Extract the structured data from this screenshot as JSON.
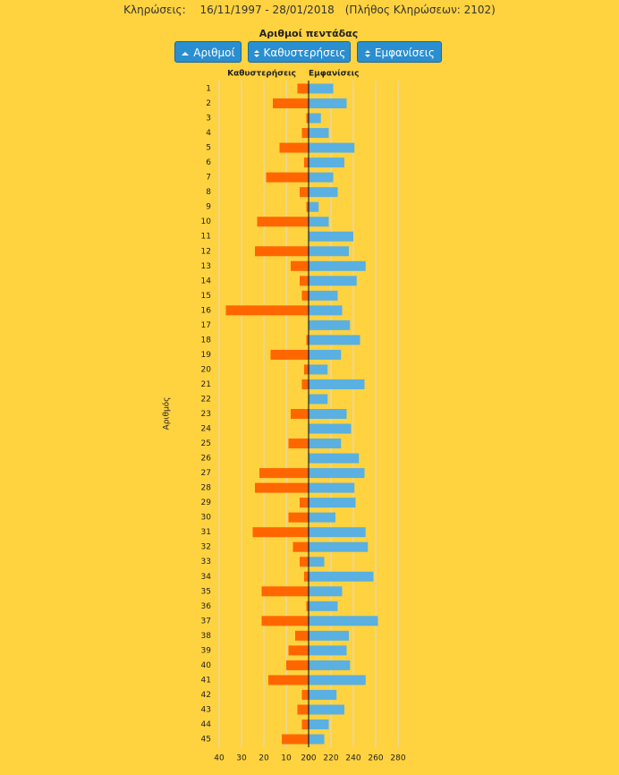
{
  "header": {
    "label": "Κληρώσεις:",
    "range": "16/11/1997 - 28/01/2018",
    "count": "(Πλήθος Κληρώσεων: 2102)"
  },
  "buttons": [
    "Αριθμοί",
    "Καθυστερήσεις",
    "Εμφανίσεις"
  ],
  "chart_data": {
    "type": "bar",
    "title": "Αριθμοί πεντάδας",
    "y_label": "Αριθμός",
    "categories": [
      "1",
      "2",
      "3",
      "4",
      "5",
      "6",
      "7",
      "8",
      "9",
      "10",
      "11",
      "12",
      "13",
      "14",
      "15",
      "16",
      "17",
      "18",
      "19",
      "20",
      "21",
      "22",
      "23",
      "24",
      "25",
      "26",
      "27",
      "28",
      "29",
      "30",
      "31",
      "32",
      "33",
      "34",
      "35",
      "36",
      "37",
      "38",
      "39",
      "40",
      "41",
      "42",
      "43",
      "44",
      "45"
    ],
    "grid": true,
    "series": [
      {
        "name": "Καθυστερήσεις",
        "color": "#ff6600",
        "side": "left",
        "xlim": [
          0,
          40
        ],
        "xticks": [
          40,
          30,
          20,
          10,
          0
        ],
        "values": [
          5,
          16,
          1,
          3,
          13,
          2,
          19,
          4,
          1,
          23,
          0,
          24,
          8,
          4,
          3,
          37,
          0,
          1,
          17,
          2,
          3,
          0,
          8,
          0,
          9,
          0,
          22,
          24,
          4,
          9,
          25,
          7,
          4,
          2,
          21,
          1,
          21,
          6,
          9,
          10,
          18,
          3,
          5,
          3,
          12
        ]
      },
      {
        "name": "Εμφανίσεις",
        "color": "#5ab0e0",
        "side": "right",
        "xlim": [
          200,
          280
        ],
        "xticks": [
          200,
          220,
          240,
          260,
          280
        ],
        "values": [
          222,
          234,
          211,
          218,
          241,
          232,
          222,
          226,
          209,
          218,
          240,
          236,
          251,
          243,
          226,
          230,
          237,
          246,
          229,
          217,
          250,
          217,
          234,
          238,
          229,
          245,
          250,
          241,
          242,
          224,
          251,
          253,
          214,
          258,
          230,
          226,
          262,
          236,
          234,
          237,
          251,
          225,
          232,
          218,
          214
        ]
      }
    ]
  }
}
